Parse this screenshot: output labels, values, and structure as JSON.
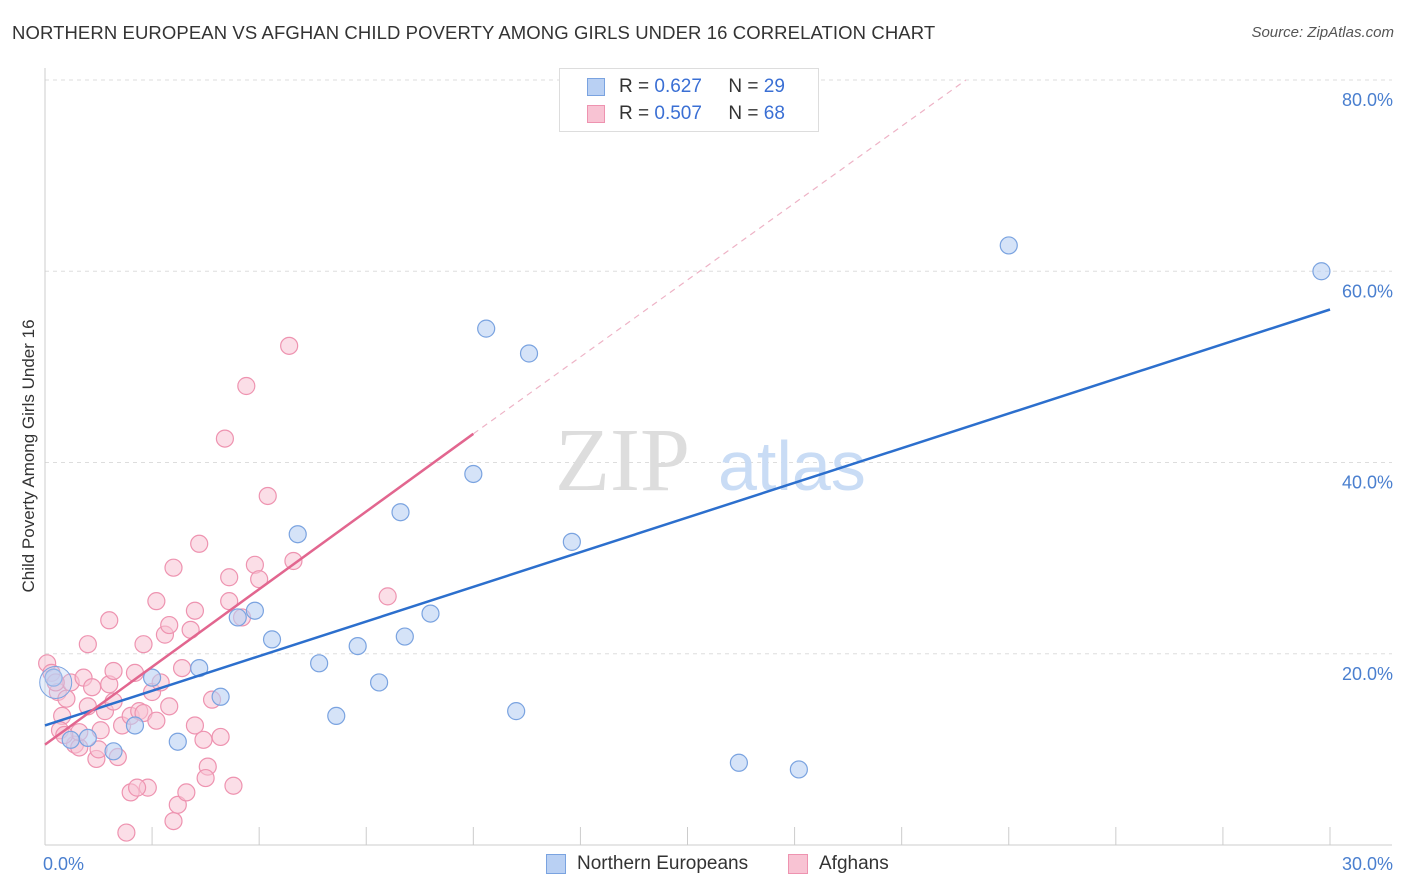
{
  "title": "NORTHERN EUROPEAN VS AFGHAN CHILD POVERTY AMONG GIRLS UNDER 16 CORRELATION CHART",
  "source": "Source: ZipAtlas.com",
  "watermark": {
    "zip": "ZIP",
    "atlas": "atlas"
  },
  "colors": {
    "blue_fill": "#b9d0f3",
    "blue_stroke": "#7aa3e0",
    "blue_line": "#2c6fcd",
    "pink_fill": "#f8c3d3",
    "pink_stroke": "#ee93b0",
    "pink_line": "#e2668f",
    "tick_text": "#4a7fcf",
    "grid": "#dddddd"
  },
  "legend": {
    "rows": [
      {
        "r_label": "R =",
        "r_value": "0.627",
        "n_label": "N =",
        "n_value": "29"
      },
      {
        "r_label": "R =",
        "r_value": "0.507",
        "n_label": "N =",
        "n_value": "68"
      }
    ]
  },
  "bottom_legend": {
    "series1": "Northern Europeans",
    "series2": "Afghans"
  },
  "chart_data": {
    "type": "scatter",
    "title": "NORTHERN EUROPEAN VS AFGHAN CHILD POVERTY AMONG GIRLS UNDER 16 CORRELATION CHART",
    "xlabel": "",
    "ylabel": "Child Poverty Among Girls Under 16",
    "xlim": [
      0,
      30
    ],
    "ylim": [
      0,
      80
    ],
    "x_ticks": [
      0,
      30
    ],
    "x_tick_labels": [
      "0.0%",
      "30.0%"
    ],
    "y_ticks": [
      20,
      40,
      60,
      80
    ],
    "y_tick_labels": [
      "20.0%",
      "40.0%",
      "60.0%",
      "80.0%"
    ],
    "series": [
      {
        "name": "Northern Europeans",
        "R": 0.627,
        "N": 29,
        "points": [
          [
            0.2,
            17.5
          ],
          [
            0.6,
            11.0
          ],
          [
            1.0,
            11.2
          ],
          [
            1.6,
            9.8
          ],
          [
            2.1,
            12.5
          ],
          [
            2.5,
            17.5
          ],
          [
            3.1,
            10.8
          ],
          [
            3.6,
            18.5
          ],
          [
            4.1,
            15.5
          ],
          [
            4.5,
            23.8
          ],
          [
            4.9,
            24.5
          ],
          [
            5.3,
            21.5
          ],
          [
            5.9,
            32.5
          ],
          [
            6.4,
            19.0
          ],
          [
            6.8,
            13.5
          ],
          [
            7.3,
            20.8
          ],
          [
            7.8,
            17.0
          ],
          [
            8.3,
            34.8
          ],
          [
            8.4,
            21.8
          ],
          [
            9.0,
            24.2
          ],
          [
            10.0,
            38.8
          ],
          [
            10.3,
            54.0
          ],
          [
            11.0,
            14.0
          ],
          [
            11.3,
            51.4
          ],
          [
            12.3,
            31.7
          ],
          [
            16.2,
            8.6
          ],
          [
            17.6,
            7.9
          ],
          [
            22.5,
            62.7
          ],
          [
            29.8,
            60.0
          ]
        ],
        "trend": [
          [
            0,
            12.5
          ],
          [
            30,
            56.0
          ]
        ]
      },
      {
        "name": "Afghans",
        "R": 0.507,
        "N": 68,
        "points": [
          [
            0.05,
            19.0
          ],
          [
            0.15,
            18.0
          ],
          [
            0.3,
            16.0
          ],
          [
            0.4,
            13.5
          ],
          [
            0.35,
            12.0
          ],
          [
            0.5,
            15.3
          ],
          [
            0.6,
            17.0
          ],
          [
            0.7,
            10.5
          ],
          [
            0.8,
            10.2
          ],
          [
            0.8,
            11.8
          ],
          [
            0.9,
            17.5
          ],
          [
            1.0,
            14.5
          ],
          [
            1.1,
            16.5
          ],
          [
            1.0,
            21.0
          ],
          [
            1.2,
            9.0
          ],
          [
            1.3,
            12.0
          ],
          [
            1.4,
            14.0
          ],
          [
            1.5,
            16.8
          ],
          [
            1.5,
            23.5
          ],
          [
            1.6,
            18.2
          ],
          [
            1.6,
            15.0
          ],
          [
            1.7,
            9.2
          ],
          [
            1.8,
            12.5
          ],
          [
            1.9,
            1.3
          ],
          [
            2.0,
            5.5
          ],
          [
            2.0,
            13.5
          ],
          [
            2.1,
            18.0
          ],
          [
            2.2,
            14.0
          ],
          [
            2.3,
            13.8
          ],
          [
            2.3,
            21.0
          ],
          [
            2.4,
            6.0
          ],
          [
            2.5,
            16.0
          ],
          [
            2.6,
            25.5
          ],
          [
            2.6,
            13.0
          ],
          [
            2.7,
            17.0
          ],
          [
            2.8,
            22.0
          ],
          [
            2.9,
            14.5
          ],
          [
            2.9,
            23.0
          ],
          [
            3.0,
            29.0
          ],
          [
            3.0,
            2.5
          ],
          [
            3.1,
            4.2
          ],
          [
            3.2,
            18.5
          ],
          [
            3.3,
            5.5
          ],
          [
            3.4,
            22.5
          ],
          [
            3.5,
            24.5
          ],
          [
            3.5,
            12.5
          ],
          [
            3.6,
            31.5
          ],
          [
            3.7,
            11.0
          ],
          [
            3.8,
            8.2
          ],
          [
            3.9,
            15.2
          ],
          [
            4.1,
            11.3
          ],
          [
            4.2,
            42.5
          ],
          [
            4.3,
            25.5
          ],
          [
            4.3,
            28.0
          ],
          [
            4.4,
            6.2
          ],
          [
            4.6,
            23.8
          ],
          [
            4.7,
            48.0
          ],
          [
            4.9,
            29.3
          ],
          [
            5.0,
            27.8
          ],
          [
            5.2,
            36.5
          ],
          [
            5.7,
            52.2
          ],
          [
            5.8,
            29.7
          ],
          [
            8.0,
            26.0
          ],
          [
            0.25,
            17.0
          ],
          [
            0.45,
            11.5
          ],
          [
            1.25,
            10.0
          ],
          [
            2.15,
            6.0
          ],
          [
            3.75,
            7.0
          ]
        ],
        "trend": [
          [
            0,
            10.5
          ],
          [
            10.0,
            43.0
          ]
        ],
        "trend_extension": [
          [
            10.0,
            43.0
          ],
          [
            21.5,
            80.0
          ]
        ]
      }
    ]
  }
}
